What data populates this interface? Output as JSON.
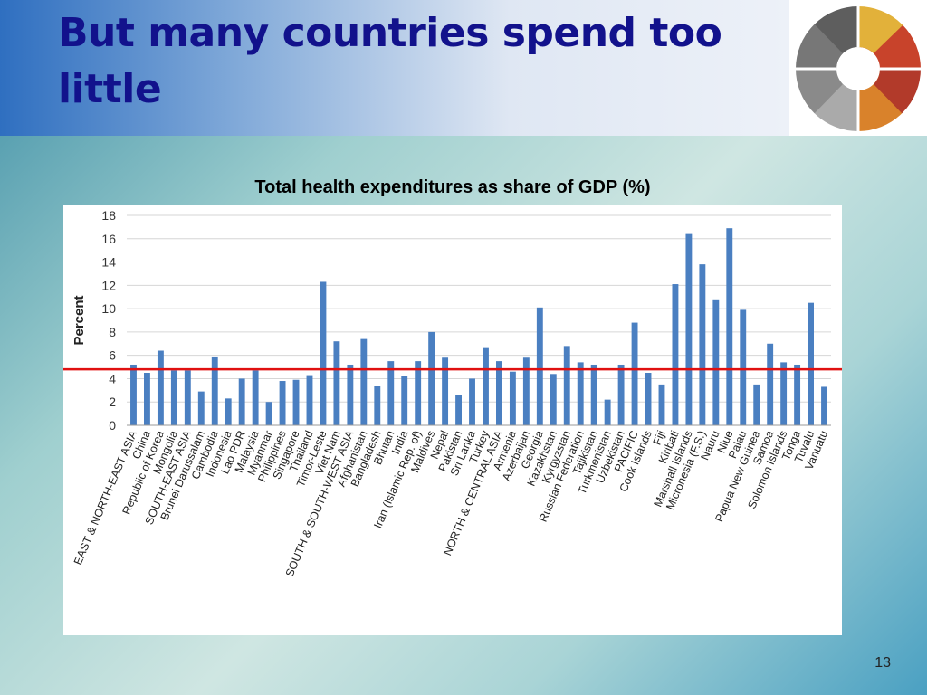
{
  "slide": {
    "title": "But many  countries spend too little",
    "page_number": "13"
  },
  "chart_data": {
    "type": "bar",
    "title": "Total health expenditures as share of GDP (%)",
    "ylabel": "Percent",
    "xlabel": "",
    "ylim": [
      0,
      18
    ],
    "yticks": [
      0,
      2,
      4,
      6,
      8,
      10,
      12,
      14,
      16,
      18
    ],
    "grid": true,
    "bar_color": "#4a7fc1",
    "reference_line": {
      "value": 4.8,
      "color": "#e01010"
    },
    "categories": [
      "EAST & NORTH-EAST ASIA",
      "China",
      "Republic of Korea",
      "Mongolia",
      "SOUTH-EAST ASIA",
      "Brunei Darussalam",
      "Cambodia",
      "Indonesia",
      "Lao PDR",
      "Malaysia",
      "Myanmar",
      "Philippines",
      "Singapore",
      "Thailand",
      "Timor-Leste",
      "Viet Nam",
      "SOUTH & SOUTH-WEST ASIA",
      "Afghanistan",
      "Bangladesh",
      "Bhutan",
      "India",
      "Iran (Islamic Rep. of)",
      "Maldives",
      "Nepal",
      "Pakistan",
      "Sri Lanka",
      "Turkey",
      "NORTH & CENTRAL ASIA",
      "Armenia",
      "Azerbaijan",
      "Georgia",
      "Kazakhstan",
      "Kyrgyzstan",
      "Russian Federation",
      "Tajikistan",
      "Turkmenistan",
      "Uzbekistan",
      "PACIFIC",
      "Cook Islands",
      "Fiji",
      "Kiribati",
      "Marshall Islands",
      "Micronesia (F.S.)",
      "Nauru",
      "Niue",
      "Palau",
      "Papua New Guinea",
      "Samoa",
      "Solomon Islands",
      "Tonga",
      "Tuvalu",
      "Vanuatu"
    ],
    "values": [
      5.2,
      4.5,
      6.4,
      4.7,
      4.7,
      2.9,
      5.9,
      2.3,
      4.0,
      4.7,
      2.0,
      3.8,
      3.9,
      4.3,
      12.3,
      7.2,
      5.2,
      7.4,
      3.4,
      5.5,
      4.2,
      5.5,
      8.0,
      5.8,
      2.6,
      4.0,
      6.7,
      5.5,
      4.6,
      5.8,
      10.1,
      4.4,
      6.8,
      5.4,
      5.2,
      2.2,
      5.2,
      8.8,
      4.5,
      3.5,
      12.1,
      16.4,
      13.8,
      10.8,
      16.9,
      9.9,
      3.5,
      7.0,
      5.4,
      5.2,
      10.5,
      3.3
    ]
  }
}
